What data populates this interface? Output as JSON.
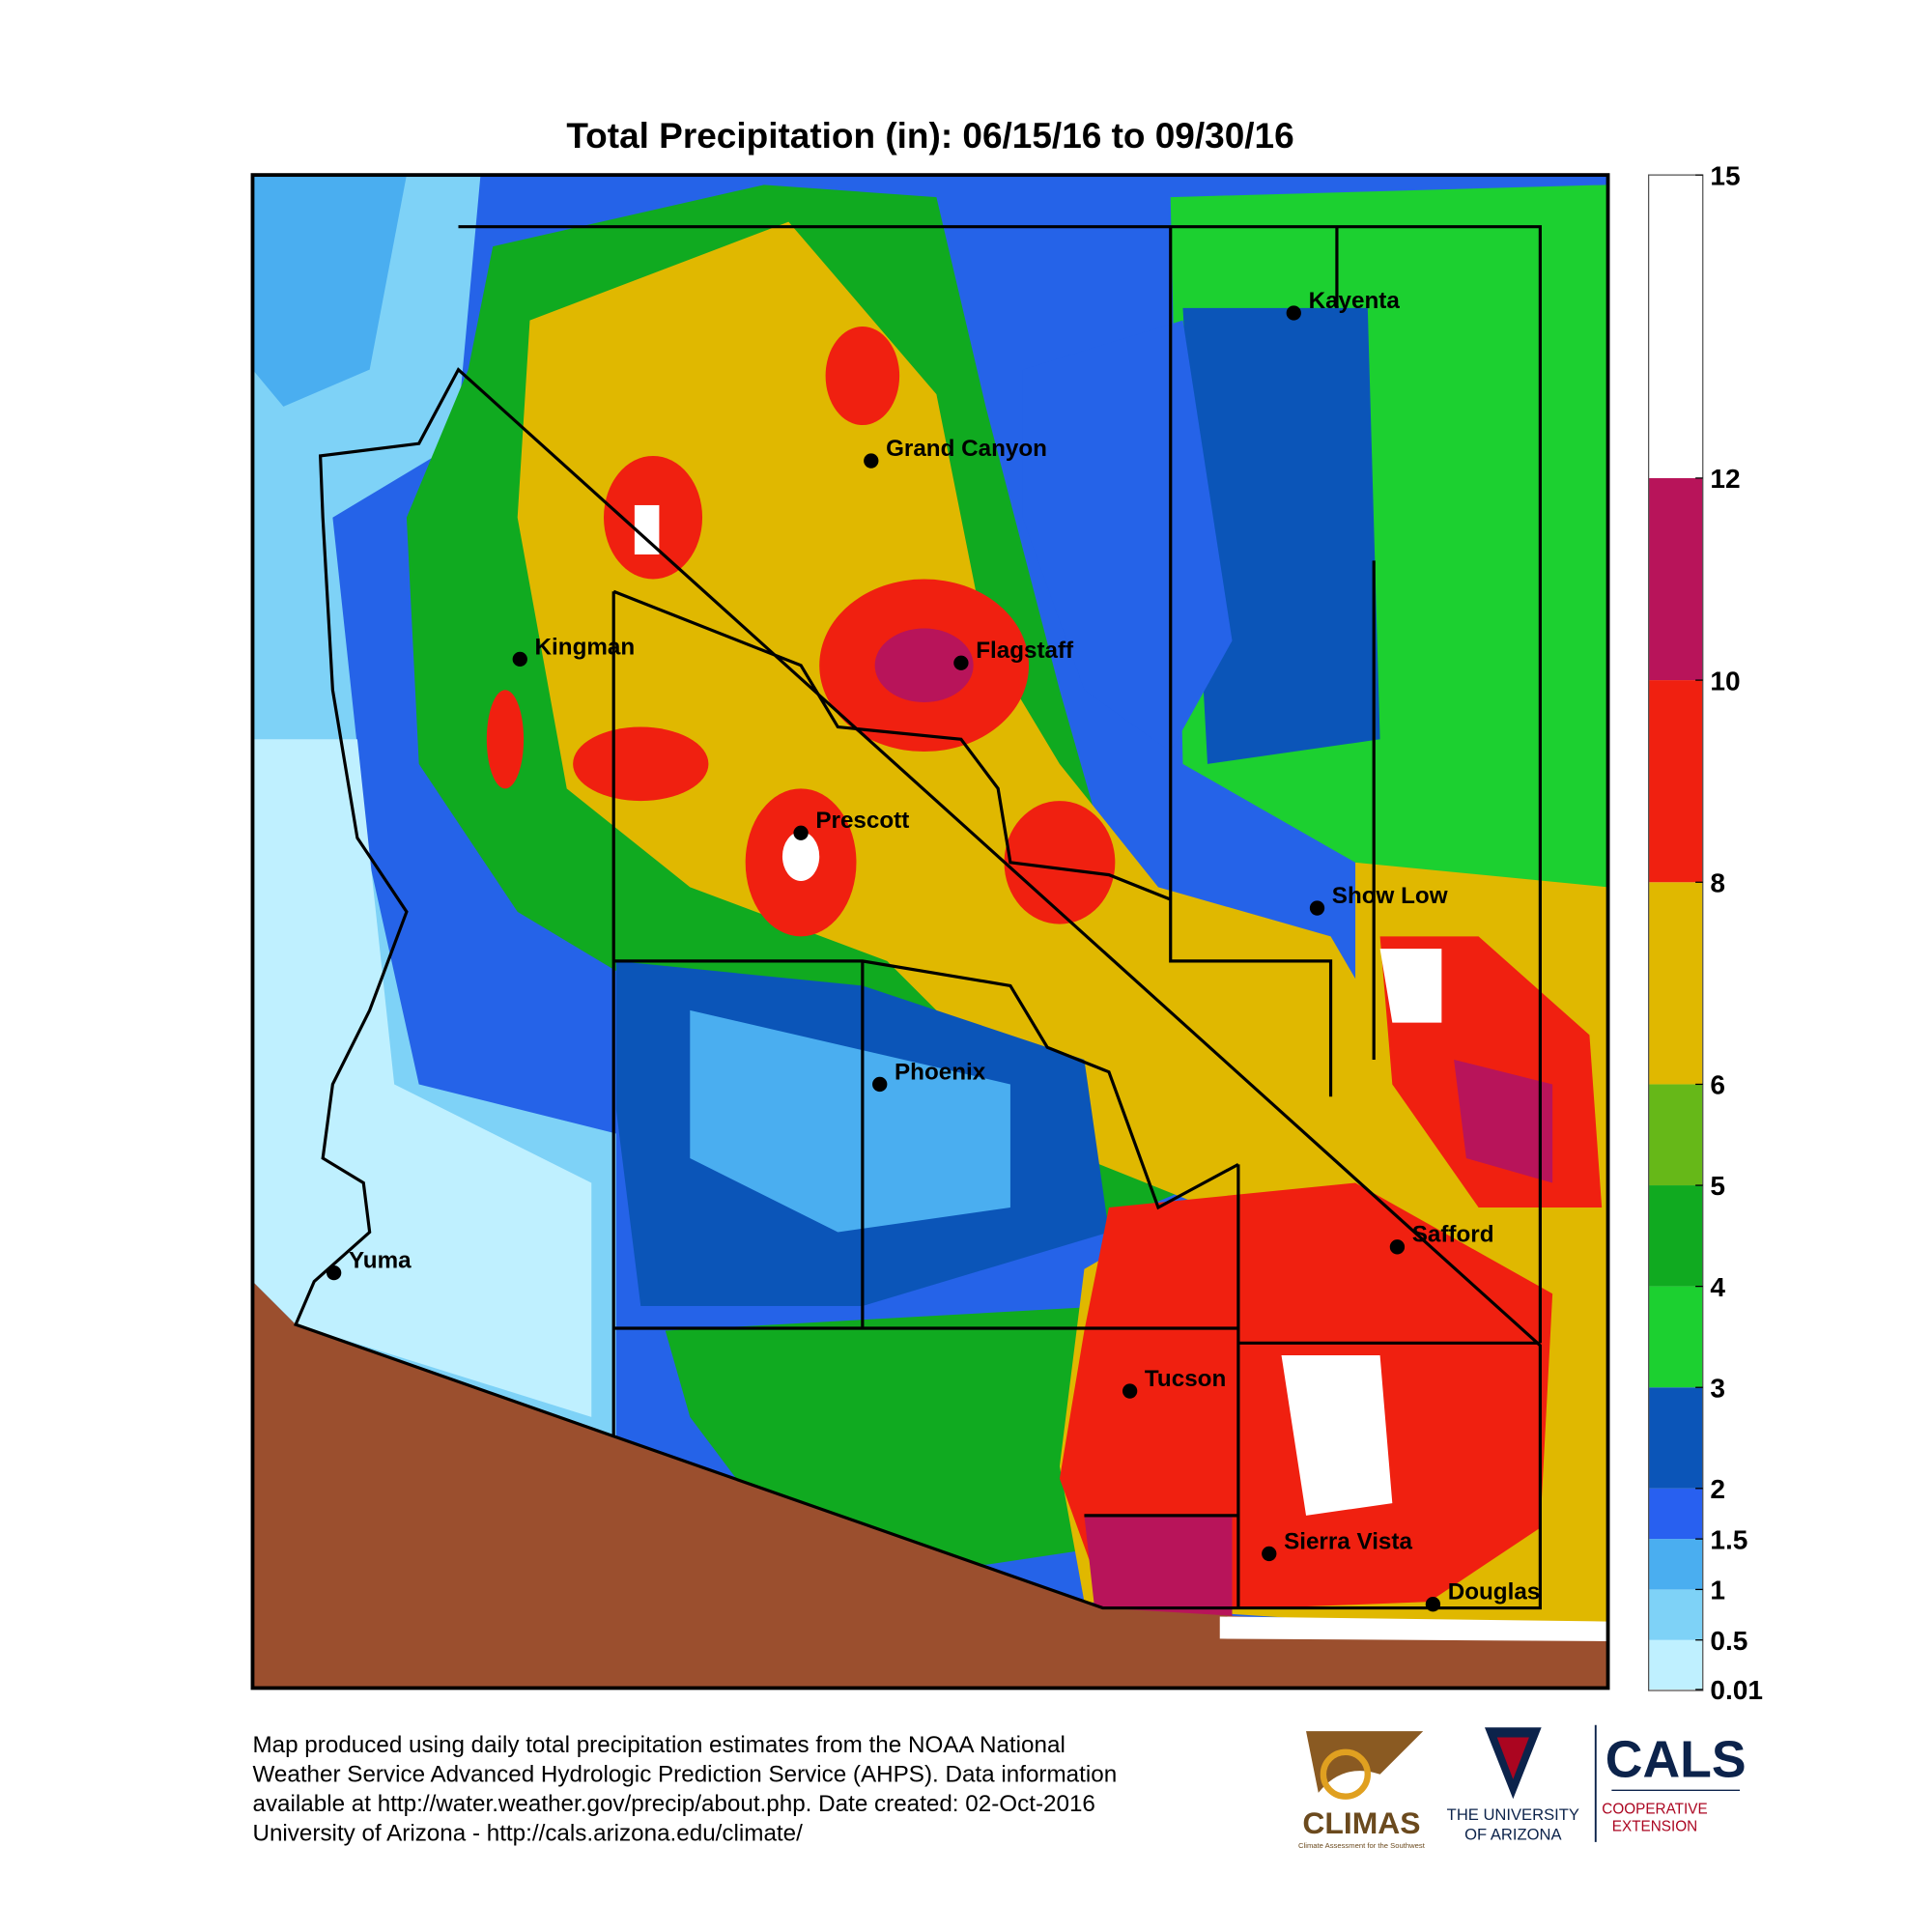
{
  "title": "Total Precipitation (in): 06/15/16 to 09/30/16",
  "legend": {
    "lim": [
      0,
      15
    ],
    "ticks": [
      0.01,
      0.5,
      1,
      1.5,
      2,
      3,
      4,
      5,
      6,
      8,
      10,
      12,
      15
    ],
    "colors": [
      "#bff0ff",
      "#7ed2f7",
      "#4aaef0",
      "#2860f0",
      "#0b55b8",
      "#1cd030",
      "#10aa20",
      "#66b818",
      "#e0b800",
      "#f02010",
      "#b8145a",
      "#ffffff"
    ]
  },
  "cities": [
    "Kayenta",
    "Grand Canyon",
    "Kingman",
    "Flagstaff",
    "Prescott",
    "Show Low",
    "Phoenix",
    "Safford",
    "Yuma",
    "Tucson",
    "Sierra Vista",
    "Douglas"
  ],
  "footer": [
    "Map produced using daily total precipitation estimates from the NOAA National",
    "Weather Service Advanced Hydrologic Prediction Service (AHPS). Data information",
    "available at http://water.weather.gov/precip/about.php. Date created: 02-Oct-2016",
    "University of Arizona - http://cals.arizona.edu/climate/"
  ],
  "logos": {
    "climas": "CLIMAS",
    "climas_tagline": "Climate Assessment for the Southwest",
    "university": [
      "THE UNIVERSITY",
      "OF ARIZONA"
    ],
    "cals": "CALS",
    "extension": [
      "COOPERATIVE",
      "EXTENSION"
    ]
  }
}
